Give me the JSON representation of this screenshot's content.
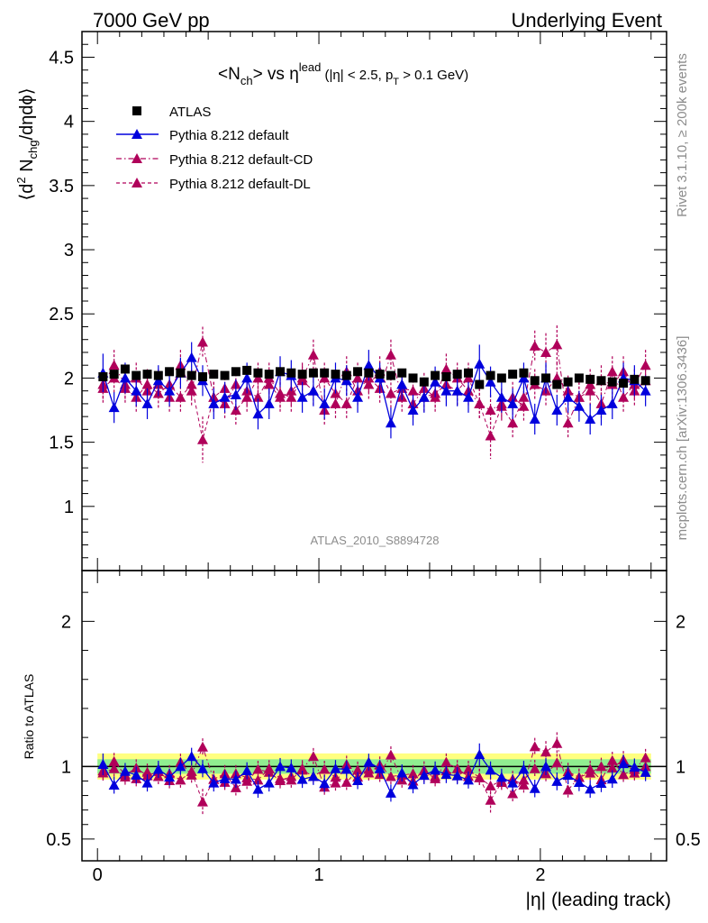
{
  "header": {
    "left": "7000 GeV pp",
    "right": "Underlying Event"
  },
  "side_labels": {
    "rivet": "Rivet 3.1.10, ≥ 200k events",
    "mcplots": "mcplots.cern.ch [arXiv:1306.3436]"
  },
  "title": {
    "main": "<N",
    "main_sub": "ch",
    "main_mid": "> vs η",
    "main_sup": "lead",
    "cond_a": " (|η| < 2.5, p",
    "cond_sub": "T",
    "cond_b": " > 0.1 GeV)"
  },
  "analysis_id": "ATLAS_2010_S8894728",
  "ylabel_main": "⟨d² N_chg/dηdϕ⟩",
  "ylabel_ratio": "Ratio to ATLAS",
  "xlabel": "|η| (leading track)",
  "legend": [
    {
      "label": "ATLAS"
    },
    {
      "label": "Pythia 8.212 default"
    },
    {
      "label": "Pythia 8.212 default-CD"
    },
    {
      "label": "Pythia 8.212 default-DL"
    }
  ],
  "chart_data": {
    "type": "scatter",
    "title": "<N_ch> vs η^lead (|η| < 2.5, p_T > 0.1 GeV)",
    "xlabel": "|η| (leading track)",
    "ylabel": "⟨d² N_chg/dηdϕ⟩",
    "xlim": [
      -0.07,
      2.57
    ],
    "ylim": [
      0.5,
      4.7
    ],
    "ratio_ylim": [
      0.35,
      2.35
    ],
    "x_ticks": [
      0,
      1,
      2
    ],
    "y_ticks": [
      1,
      1.5,
      2,
      2.5,
      3,
      3.5,
      4,
      4.5
    ],
    "ratio_y_ticks": [
      0.5,
      1,
      2
    ],
    "x": [
      0.025,
      0.075,
      0.125,
      0.175,
      0.225,
      0.275,
      0.325,
      0.375,
      0.425,
      0.475,
      0.525,
      0.575,
      0.625,
      0.675,
      0.725,
      0.775,
      0.825,
      0.875,
      0.925,
      0.975,
      1.025,
      1.075,
      1.125,
      1.175,
      1.225,
      1.275,
      1.325,
      1.375,
      1.425,
      1.475,
      1.525,
      1.575,
      1.625,
      1.675,
      1.725,
      1.775,
      1.825,
      1.875,
      1.925,
      1.975,
      2.025,
      2.075,
      2.125,
      2.175,
      2.225,
      2.275,
      2.325,
      2.375,
      2.425,
      2.475
    ],
    "series": [
      {
        "name": "ATLAS",
        "marker": "square",
        "color": "#000000",
        "values": [
          2.01,
          2.03,
          2.07,
          2.02,
          2.03,
          2.02,
          2.05,
          2.04,
          2.02,
          2.01,
          2.03,
          2.02,
          2.05,
          2.06,
          2.04,
          2.03,
          2.05,
          2.04,
          2.03,
          2.04,
          2.04,
          2.03,
          2.02,
          2.05,
          2.04,
          2.03,
          2.02,
          2.04,
          2.0,
          1.97,
          2.02,
          2.01,
          2.03,
          2.04,
          1.95,
          2.02,
          2.0,
          2.03,
          2.04,
          1.98,
          2.0,
          1.95,
          1.97,
          2.0,
          1.99,
          1.98,
          1.97,
          1.96,
          1.99,
          1.98
        ],
        "errors": [
          0.03,
          0.03,
          0.03,
          0.03,
          0.03,
          0.03,
          0.03,
          0.03,
          0.03,
          0.03,
          0.03,
          0.03,
          0.03,
          0.03,
          0.03,
          0.03,
          0.03,
          0.03,
          0.03,
          0.03,
          0.03,
          0.03,
          0.03,
          0.03,
          0.03,
          0.03,
          0.03,
          0.03,
          0.03,
          0.03,
          0.03,
          0.03,
          0.03,
          0.03,
          0.03,
          0.03,
          0.03,
          0.03,
          0.03,
          0.03,
          0.03,
          0.03,
          0.03,
          0.03,
          0.03,
          0.03,
          0.03,
          0.03,
          0.03,
          0.03
        ]
      },
      {
        "name": "Pythia 8.212 default",
        "marker": "triangle",
        "color": "#0000dd",
        "line": "solid",
        "values": [
          2.04,
          1.77,
          2.0,
          1.9,
          1.8,
          1.98,
          1.9,
          2.04,
          2.16,
          1.98,
          1.8,
          1.85,
          1.87,
          2.0,
          1.72,
          1.8,
          2.05,
          2.02,
          1.85,
          1.9,
          1.8,
          2.0,
          1.98,
          1.85,
          2.1,
          2.0,
          1.65,
          1.95,
          1.75,
          1.85,
          1.97,
          1.9,
          1.9,
          1.85,
          2.11,
          1.97,
          1.85,
          1.8,
          2.0,
          1.68,
          2.0,
          1.75,
          1.85,
          1.78,
          1.68,
          1.75,
          1.8,
          2.0,
          1.98,
          1.9
        ],
        "errors": [
          0.15,
          0.12,
          0.12,
          0.12,
          0.12,
          0.12,
          0.12,
          0.12,
          0.12,
          0.12,
          0.12,
          0.12,
          0.12,
          0.12,
          0.12,
          0.12,
          0.12,
          0.12,
          0.12,
          0.12,
          0.12,
          0.12,
          0.12,
          0.12,
          0.12,
          0.12,
          0.12,
          0.12,
          0.12,
          0.12,
          0.12,
          0.12,
          0.12,
          0.12,
          0.15,
          0.12,
          0.12,
          0.12,
          0.12,
          0.12,
          0.12,
          0.12,
          0.12,
          0.12,
          0.12,
          0.12,
          0.12,
          0.12,
          0.12,
          0.12
        ]
      },
      {
        "name": "Pythia 8.212 default-CD",
        "marker": "triangle",
        "color": "#b0005a",
        "line": "dashdot",
        "values": [
          1.95,
          2.1,
          1.95,
          2.0,
          1.9,
          1.95,
          1.85,
          2.1,
          1.9,
          2.28,
          1.85,
          1.8,
          1.95,
          1.9,
          1.85,
          2.0,
          1.88,
          1.85,
          2.0,
          2.18,
          1.75,
          1.8,
          2.05,
          1.9,
          2.0,
          1.92,
          2.18,
          1.85,
          1.8,
          1.92,
          1.85,
          2.07,
          2.0,
          1.9,
          1.8,
          1.75,
          1.8,
          1.85,
          1.78,
          2.25,
          2.2,
          2.26,
          1.65,
          1.85,
          1.95,
          1.8,
          2.05,
          1.85,
          1.95,
          2.1
        ],
        "errors": [
          0.12,
          0.12,
          0.12,
          0.12,
          0.12,
          0.12,
          0.12,
          0.12,
          0.12,
          0.12,
          0.12,
          0.12,
          0.12,
          0.12,
          0.12,
          0.12,
          0.12,
          0.12,
          0.12,
          0.12,
          0.12,
          0.12,
          0.12,
          0.12,
          0.12,
          0.12,
          0.12,
          0.12,
          0.12,
          0.12,
          0.12,
          0.12,
          0.12,
          0.12,
          0.12,
          0.12,
          0.12,
          0.12,
          0.12,
          0.12,
          0.15,
          0.15,
          0.12,
          0.12,
          0.12,
          0.12,
          0.12,
          0.12,
          0.12,
          0.12
        ]
      },
      {
        "name": "Pythia 8.212 default-DL",
        "marker": "triangle",
        "color": "#b0005a",
        "line": "dashed",
        "values": [
          1.92,
          2.0,
          1.92,
          1.85,
          1.95,
          1.88,
          1.95,
          1.85,
          1.95,
          1.52,
          1.85,
          1.92,
          1.75,
          1.85,
          2.0,
          1.95,
          1.85,
          1.9,
          1.98,
          1.9,
          2.0,
          1.88,
          1.8,
          2.0,
          1.95,
          2.05,
          1.88,
          1.92,
          1.9,
          1.85,
          1.88,
          1.95,
          1.9,
          2.0,
          1.8,
          1.55,
          1.78,
          1.65,
          1.85,
          1.95,
          1.9,
          2.0,
          1.9,
          1.85,
          1.9,
          1.98,
          1.95,
          2.05,
          1.9,
          1.98
        ],
        "errors": [
          0.12,
          0.12,
          0.12,
          0.12,
          0.12,
          0.12,
          0.12,
          0.12,
          0.12,
          0.18,
          0.12,
          0.12,
          0.12,
          0.12,
          0.12,
          0.12,
          0.12,
          0.12,
          0.12,
          0.12,
          0.12,
          0.12,
          0.12,
          0.12,
          0.12,
          0.12,
          0.12,
          0.12,
          0.12,
          0.12,
          0.12,
          0.12,
          0.12,
          0.12,
          0.12,
          0.18,
          0.12,
          0.12,
          0.12,
          0.12,
          0.12,
          0.12,
          0.12,
          0.12,
          0.12,
          0.12,
          0.12,
          0.12,
          0.12,
          0.12
        ]
      }
    ],
    "ratio_bands": [
      {
        "name": "ATLAS stat",
        "halfwidth": 0.05,
        "color": "#90ee90"
      },
      {
        "name": "ATLAS total",
        "halfwidth": 0.09,
        "color": "#ffff80"
      }
    ]
  }
}
